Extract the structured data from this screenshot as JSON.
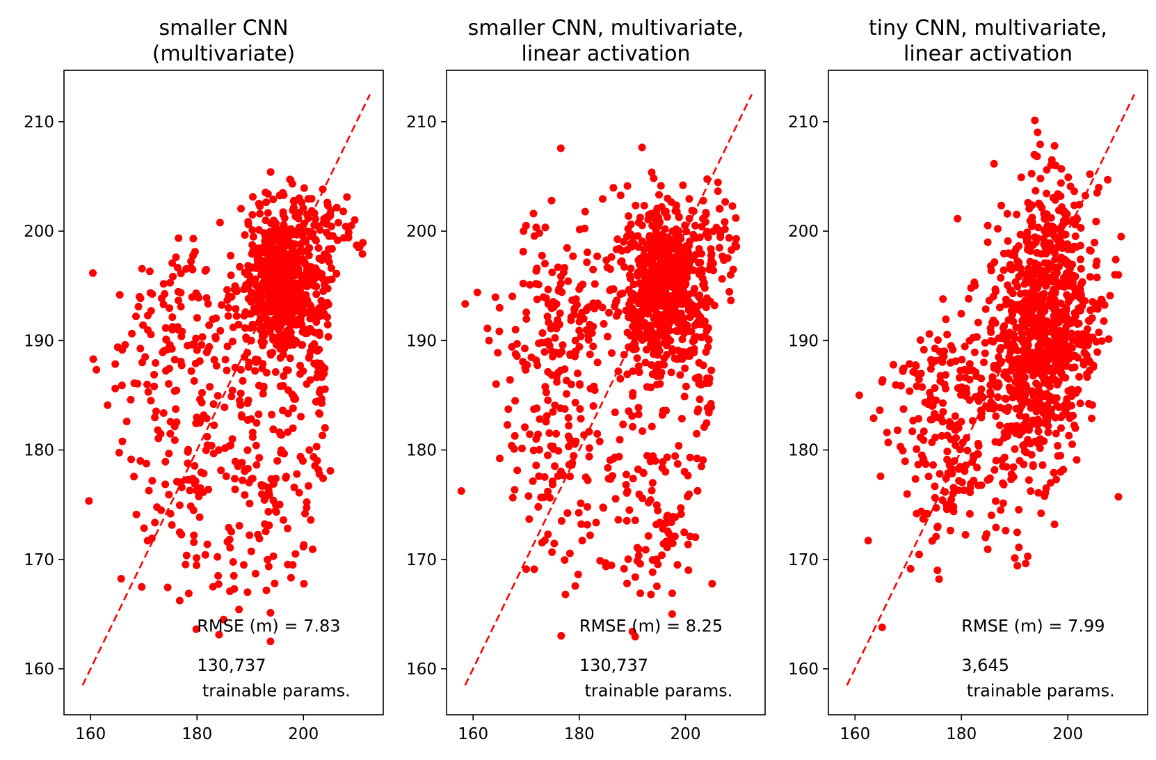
{
  "chart_data": [
    {
      "type": "scatter",
      "title": "smaller CNN\n(multivariate)",
      "xlabel": "",
      "ylabel": "",
      "xlim": [
        155,
        215
      ],
      "ylim": [
        155.8,
        214.7
      ],
      "xticks": [
        160,
        180,
        200
      ],
      "yticks": [
        160,
        170,
        180,
        190,
        200,
        210
      ],
      "reference_line": {
        "style": "dashed",
        "from": [
          158.5,
          158.5
        ],
        "to": [
          212.5,
          212.5
        ]
      },
      "annotation": {
        "rmse": "RMSE (m) = 7.83",
        "params_count": "130,737",
        "params_label": " trainable params."
      },
      "marker_color": "#ff0000",
      "clusters": [
        {
          "cx": 196,
          "cy": 195,
          "sx": 4,
          "sy": 3.8,
          "n": 650
        },
        {
          "cx": 178,
          "cy": 192,
          "sx": 6,
          "sy": 4.5,
          "n": 120
        },
        {
          "cx": 182,
          "cy": 178,
          "sx": 7,
          "sy": 6,
          "n": 150
        },
        {
          "cx": 195,
          "cy": 176,
          "sx": 4,
          "sy": 4.5,
          "n": 70
        },
        {
          "cx": 203,
          "cy": 187,
          "sx": 1.4,
          "sy": 6,
          "n": 50
        },
        {
          "cx": 205,
          "cy": 200,
          "sx": 3,
          "sy": 1.8,
          "n": 40
        }
      ],
      "notable_points": [
        {
          "x": 160.5,
          "y": 188.3
        },
        {
          "x": 163.2,
          "y": 184.1
        },
        {
          "x": 165.1,
          "y": 189.4
        },
        {
          "x": 165.9,
          "y": 185.9
        },
        {
          "x": 168.2,
          "y": 186.1
        },
        {
          "x": 169.0,
          "y": 193.1
        },
        {
          "x": 185.0,
          "y": 164.5
        },
        {
          "x": 183.0,
          "y": 167.5
        },
        {
          "x": 187.0,
          "y": 167.3
        },
        {
          "x": 189.5,
          "y": 167.0
        },
        {
          "x": 191.0,
          "y": 168.7
        },
        {
          "x": 198.0,
          "y": 169.5
        },
        {
          "x": 198.5,
          "y": 170.5
        },
        {
          "x": 203.0,
          "y": 177.8
        },
        {
          "x": 210.0,
          "y": 198.7
        },
        {
          "x": 209.0,
          "y": 200.5
        },
        {
          "x": 207.5,
          "y": 201.8
        }
      ]
    },
    {
      "type": "scatter",
      "title": "smaller CNN, multivariate,\nlinear activation",
      "xlabel": "",
      "ylabel": "",
      "xlim": [
        155,
        215
      ],
      "ylim": [
        155.8,
        214.7
      ],
      "xticks": [
        160,
        180,
        200
      ],
      "yticks": [
        160,
        170,
        180,
        190,
        200,
        210
      ],
      "reference_line": {
        "style": "dashed",
        "from": [
          158.5,
          158.5
        ],
        "to": [
          212.5,
          212.5
        ]
      },
      "annotation": {
        "rmse": "RMSE (m) = 8.25",
        "params_count": "130,737",
        "params_label": " trainable params."
      },
      "marker_color": "#ff0000",
      "clusters": [
        {
          "cx": 196,
          "cy": 195,
          "sx": 4,
          "sy": 4,
          "n": 600
        },
        {
          "cx": 177,
          "cy": 193,
          "sx": 5.5,
          "sy": 4.5,
          "n": 140
        },
        {
          "cx": 175,
          "cy": 180,
          "sx": 5,
          "sy": 6,
          "n": 110
        },
        {
          "cx": 190,
          "cy": 177,
          "sx": 6,
          "sy": 5.5,
          "n": 100
        },
        {
          "cx": 196,
          "cy": 172,
          "sx": 1.8,
          "sy": 1.5,
          "n": 30
        },
        {
          "cx": 203,
          "cy": 187,
          "sx": 1.2,
          "sy": 5,
          "n": 45
        },
        {
          "cx": 205,
          "cy": 199,
          "sx": 3,
          "sy": 2.5,
          "n": 40
        }
      ],
      "notable_points": [
        {
          "x": 160.8,
          "y": 194.4
        },
        {
          "x": 163.0,
          "y": 190.0
        },
        {
          "x": 165.0,
          "y": 193.0
        },
        {
          "x": 168.0,
          "y": 191.0
        },
        {
          "x": 169.5,
          "y": 200.0
        },
        {
          "x": 190.0,
          "y": 163.4
        },
        {
          "x": 189.0,
          "y": 167.8
        },
        {
          "x": 191.5,
          "y": 166.9
        },
        {
          "x": 193.5,
          "y": 166.8
        },
        {
          "x": 197.5,
          "y": 166.9
        },
        {
          "x": 198.5,
          "y": 169.5
        },
        {
          "x": 197.5,
          "y": 165.0
        },
        {
          "x": 203.0,
          "y": 178.5
        },
        {
          "x": 209.0,
          "y": 196.5
        },
        {
          "x": 208.5,
          "y": 196.0
        }
      ]
    },
    {
      "type": "scatter",
      "title": "tiny CNN, multivariate,\nlinear activation",
      "xlabel": "",
      "ylabel": "",
      "xlim": [
        155,
        215
      ],
      "ylim": [
        155.8,
        214.7
      ],
      "xticks": [
        160,
        180,
        200
      ],
      "yticks": [
        160,
        170,
        180,
        190,
        200,
        210
      ],
      "reference_line": {
        "style": "dashed",
        "from": [
          158.5,
          158.5
        ],
        "to": [
          212.5,
          212.5
        ]
      },
      "annotation": {
        "rmse": "RMSE (m) = 7.99",
        "params_count": "3,645",
        "params_label": " trainable params."
      },
      "marker_color": "#ff0000",
      "clusters": [
        {
          "cx": 195,
          "cy": 190,
          "sx": 4.5,
          "sy": 6,
          "n": 700
        },
        {
          "cx": 176,
          "cy": 181,
          "sx": 5,
          "sy": 6,
          "n": 170
        },
        {
          "cx": 186,
          "cy": 184,
          "sx": 5,
          "sy": 6,
          "n": 130
        },
        {
          "cx": 202,
          "cy": 195,
          "sx": 3.5,
          "sy": 5,
          "n": 80
        },
        {
          "cx": 197,
          "cy": 201,
          "sx": 2.5,
          "sy": 3,
          "n": 50
        }
      ],
      "notable_points": [
        {
          "x": 160.8,
          "y": 185.0
        },
        {
          "x": 163.5,
          "y": 182.9
        },
        {
          "x": 165.2,
          "y": 186.4
        },
        {
          "x": 166.0,
          "y": 181.6
        },
        {
          "x": 168.0,
          "y": 181.8
        },
        {
          "x": 169.0,
          "y": 187.2
        },
        {
          "x": 175.8,
          "y": 168.2
        },
        {
          "x": 175.5,
          "y": 169.0
        },
        {
          "x": 190.8,
          "y": 171.1
        },
        {
          "x": 184.5,
          "y": 172.0
        },
        {
          "x": 197.5,
          "y": 207.8
        },
        {
          "x": 197.0,
          "y": 206.5
        },
        {
          "x": 205.5,
          "y": 203.5
        },
        {
          "x": 207.5,
          "y": 204.7
        },
        {
          "x": 210.0,
          "y": 199.5
        },
        {
          "x": 209.0,
          "y": 197.4
        },
        {
          "x": 209.5,
          "y": 196.0
        },
        {
          "x": 197.5,
          "y": 173.2
        }
      ]
    }
  ]
}
